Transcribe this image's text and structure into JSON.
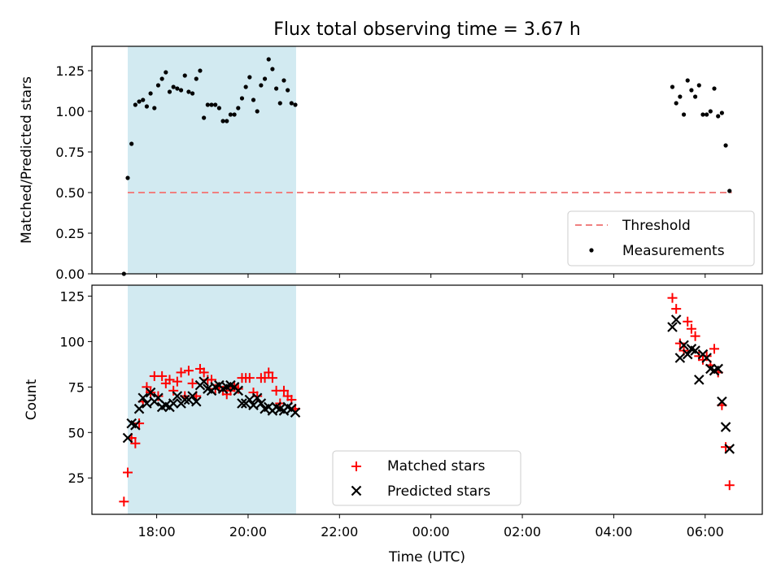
{
  "chart_data": [
    {
      "type": "scatter",
      "title": "Flux total observing time = 3.67 h",
      "xlabel": "",
      "ylabel": "Matched/Predicted stars",
      "ylim": [
        0,
        1.4
      ],
      "xlim": [
        "16:35",
        "07:15"
      ],
      "yticks": [
        "0.00",
        "0.25",
        "0.50",
        "0.75",
        "1.00",
        "1.25"
      ],
      "yticks_values": [
        0,
        0.25,
        0.5,
        0.75,
        1.0,
        1.25
      ],
      "shaded_interval": [
        "17:22",
        "21:03"
      ],
      "shade_color": "#add8e6",
      "threshold": {
        "name": "Threshold",
        "value": 0.5,
        "x_range": [
          "17:22",
          "06:35"
        ],
        "color": "#f08080",
        "style": "dashed"
      },
      "series": [
        {
          "name": "Measurements",
          "color": "#000000",
          "marker": "dot",
          "points": [
            [
              "17:17",
              0.0
            ],
            [
              "17:22",
              0.59
            ],
            [
              "17:27",
              0.8
            ],
            [
              "17:32",
              1.04
            ],
            [
              "17:37",
              1.06
            ],
            [
              "17:42",
              1.07
            ],
            [
              "17:47",
              1.03
            ],
            [
              "17:52",
              1.11
            ],
            [
              "17:57",
              1.02
            ],
            [
              "18:02",
              1.16
            ],
            [
              "18:07",
              1.2
            ],
            [
              "18:12",
              1.24
            ],
            [
              "18:17",
              1.12
            ],
            [
              "18:22",
              1.15
            ],
            [
              "18:27",
              1.14
            ],
            [
              "18:32",
              1.13
            ],
            [
              "18:37",
              1.22
            ],
            [
              "18:42",
              1.12
            ],
            [
              "18:47",
              1.11
            ],
            [
              "18:52",
              1.2
            ],
            [
              "18:57",
              1.25
            ],
            [
              "19:02",
              0.96
            ],
            [
              "19:07",
              1.04
            ],
            [
              "19:12",
              1.04
            ],
            [
              "19:17",
              1.04
            ],
            [
              "19:22",
              1.02
            ],
            [
              "19:27",
              0.94
            ],
            [
              "19:32",
              0.94
            ],
            [
              "19:37",
              0.98
            ],
            [
              "19:42",
              0.98
            ],
            [
              "19:47",
              1.02
            ],
            [
              "19:52",
              1.08
            ],
            [
              "19:57",
              1.15
            ],
            [
              "20:02",
              1.21
            ],
            [
              "20:07",
              1.07
            ],
            [
              "20:12",
              1.0
            ],
            [
              "20:17",
              1.16
            ],
            [
              "20:22",
              1.2
            ],
            [
              "20:27",
              1.32
            ],
            [
              "20:32",
              1.26
            ],
            [
              "20:37",
              1.14
            ],
            [
              "20:42",
              1.05
            ],
            [
              "20:47",
              1.19
            ],
            [
              "20:52",
              1.13
            ],
            [
              "20:57",
              1.05
            ],
            [
              "21:02",
              1.04
            ],
            [
              "05:17",
              1.15
            ],
            [
              "05:22",
              1.05
            ],
            [
              "05:27",
              1.09
            ],
            [
              "05:32",
              0.98
            ],
            [
              "05:37",
              1.19
            ],
            [
              "05:42",
              1.13
            ],
            [
              "05:47",
              1.09
            ],
            [
              "05:52",
              1.16
            ],
            [
              "05:57",
              0.98
            ],
            [
              "06:02",
              0.98
            ],
            [
              "06:07",
              1.0
            ],
            [
              "06:12",
              1.14
            ],
            [
              "06:17",
              0.97
            ],
            [
              "06:22",
              0.99
            ],
            [
              "06:27",
              0.79
            ],
            [
              "06:32",
              0.51
            ]
          ]
        }
      ],
      "legend": {
        "placement": "lower-right",
        "entries": [
          "Threshold",
          "Measurements"
        ]
      },
      "grid": false
    },
    {
      "type": "scatter",
      "title": "",
      "xlabel": "Time (UTC)",
      "ylabel": "Count",
      "ylim": [
        5,
        131
      ],
      "xlim": [
        "16:35",
        "07:15"
      ],
      "xticks": [
        "18:00",
        "20:00",
        "22:00",
        "00:00",
        "02:00",
        "04:00",
        "06:00"
      ],
      "yticks": [
        "25",
        "50",
        "75",
        "100",
        "125"
      ],
      "yticks_values": [
        25,
        50,
        75,
        100,
        125
      ],
      "shaded_interval": [
        "17:22",
        "21:03"
      ],
      "shade_color": "#add8e6",
      "series": [
        {
          "name": "Matched stars",
          "color": "#ff0000",
          "marker": "plus",
          "points": [
            [
              "17:17",
              12
            ],
            [
              "17:22",
              28
            ],
            [
              "17:27",
              47
            ],
            [
              "17:32",
              44
            ],
            [
              "17:37",
              55
            ],
            [
              "17:42",
              67
            ],
            [
              "17:47",
              75
            ],
            [
              "17:52",
              72
            ],
            [
              "17:57",
              81
            ],
            [
              "18:02",
              70
            ],
            [
              "18:07",
              81
            ],
            [
              "18:12",
              77
            ],
            [
              "18:17",
              79
            ],
            [
              "18:22",
              73
            ],
            [
              "18:27",
              78
            ],
            [
              "18:32",
              83
            ],
            [
              "18:37",
              70
            ],
            [
              "18:42",
              84
            ],
            [
              "18:47",
              77
            ],
            [
              "18:52",
              70
            ],
            [
              "18:57",
              85
            ],
            [
              "19:02",
              83
            ],
            [
              "19:07",
              79
            ],
            [
              "19:12",
              79
            ],
            [
              "19:17",
              74
            ],
            [
              "19:22",
              75
            ],
            [
              "19:27",
              73
            ],
            [
              "19:32",
              71
            ],
            [
              "19:37",
              73
            ],
            [
              "19:42",
              75
            ],
            [
              "19:47",
              74
            ],
            [
              "19:52",
              80
            ],
            [
              "19:57",
              80
            ],
            [
              "20:02",
              80
            ],
            [
              "20:07",
              72
            ],
            [
              "20:12",
              70
            ],
            [
              "20:17",
              80
            ],
            [
              "20:22",
              80
            ],
            [
              "20:27",
              83
            ],
            [
              "20:32",
              80
            ],
            [
              "20:37",
              73
            ],
            [
              "20:42",
              66
            ],
            [
              "20:47",
              73
            ],
            [
              "20:52",
              70
            ],
            [
              "20:57",
              68
            ],
            [
              "21:02",
              63
            ],
            [
              "05:17",
              124
            ],
            [
              "05:22",
              118
            ],
            [
              "05:27",
              99
            ],
            [
              "05:32",
              95
            ],
            [
              "05:37",
              111
            ],
            [
              "05:42",
              107
            ],
            [
              "05:47",
              103
            ],
            [
              "05:52",
              92
            ],
            [
              "05:57",
              90
            ],
            [
              "06:02",
              92
            ],
            [
              "06:07",
              87
            ],
            [
              "06:12",
              96
            ],
            [
              "06:17",
              83
            ],
            [
              "06:22",
              65
            ],
            [
              "06:27",
              42
            ],
            [
              "06:32",
              21
            ]
          ]
        },
        {
          "name": "Predicted stars",
          "color": "#000000",
          "marker": "x",
          "points": [
            [
              "17:22",
              47
            ],
            [
              "17:27",
              55
            ],
            [
              "17:32",
              54
            ],
            [
              "17:37",
              63
            ],
            [
              "17:42",
              69
            ],
            [
              "17:47",
              66
            ],
            [
              "17:52",
              72
            ],
            [
              "17:57",
              67
            ],
            [
              "18:02",
              69
            ],
            [
              "18:07",
              64
            ],
            [
              "18:12",
              65
            ],
            [
              "18:17",
              64
            ],
            [
              "18:22",
              66
            ],
            [
              "18:27",
              70
            ],
            [
              "18:32",
              66
            ],
            [
              "18:37",
              68
            ],
            [
              "18:42",
              68
            ],
            [
              "18:47",
              70
            ],
            [
              "18:52",
              67
            ],
            [
              "18:57",
              76
            ],
            [
              "19:02",
              78
            ],
            [
              "19:07",
              74
            ],
            [
              "19:12",
              73
            ],
            [
              "19:17",
              75
            ],
            [
              "19:22",
              76
            ],
            [
              "19:27",
              74
            ],
            [
              "19:32",
              75
            ],
            [
              "19:37",
              76
            ],
            [
              "19:42",
              75
            ],
            [
              "19:47",
              73
            ],
            [
              "19:52",
              66
            ],
            [
              "19:57",
              66
            ],
            [
              "20:02",
              68
            ],
            [
              "20:07",
              65
            ],
            [
              "20:12",
              69
            ],
            [
              "20:17",
              66
            ],
            [
              "20:22",
              63
            ],
            [
              "20:27",
              64
            ],
            [
              "20:32",
              62
            ],
            [
              "20:37",
              64
            ],
            [
              "20:42",
              63
            ],
            [
              "20:47",
              62
            ],
            [
              "20:52",
              64
            ],
            [
              "20:57",
              63
            ],
            [
              "21:02",
              61
            ],
            [
              "05:17",
              108
            ],
            [
              "05:22",
              112
            ],
            [
              "05:27",
              91
            ],
            [
              "05:32",
              98
            ],
            [
              "05:37",
              93
            ],
            [
              "05:42",
              96
            ],
            [
              "05:47",
              95
            ],
            [
              "05:52",
              79
            ],
            [
              "05:57",
              93
            ],
            [
              "06:02",
              91
            ],
            [
              "06:07",
              85
            ],
            [
              "06:12",
              84
            ],
            [
              "06:17",
              85
            ],
            [
              "06:22",
              67
            ],
            [
              "06:27",
              53
            ],
            [
              "06:32",
              41
            ]
          ]
        }
      ],
      "legend": {
        "placement": "lower-center",
        "entries": [
          "Matched stars",
          "Predicted stars"
        ]
      },
      "grid": false
    }
  ]
}
